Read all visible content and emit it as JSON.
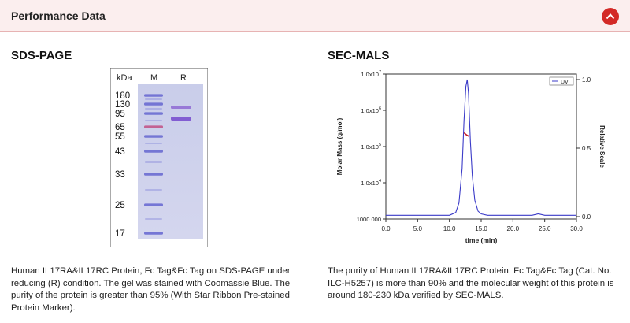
{
  "header": {
    "title": "Performance Data",
    "collapse_icon": "chevron-up-icon",
    "accent_color": "#d32a27"
  },
  "sds_page": {
    "title": "SDS-PAGE",
    "gel": {
      "col_kda": "kDa",
      "col_marker": "M",
      "col_reduced": "R",
      "marker_labels": [
        "180",
        "130",
        "95",
        "65",
        "55",
        "43",
        "33",
        "25",
        "17"
      ]
    },
    "caption": "Human IL17RA&IL17RC Protein, Fc Tag&Fc Tag on SDS-PAGE under reducing (R) condition. The gel was stained with Coomassie Blue. The purity of the protein is greater than 95% (With Star Ribbon Pre-stained Protein Marker)."
  },
  "sec_mals": {
    "title": "SEC-MALS",
    "caption": "The purity of Human IL17RA&IL17RC Protein, Fc Tag&Fc Tag (Cat. No. ILC-H5257) is more than 90% and the molecular weight of this protein is around 180-230 kDa verified by SEC-MALS."
  },
  "chart_data": {
    "type": "line",
    "title": "",
    "xlabel": "time (min)",
    "ylabel": "Molar Mass (g/mol)",
    "y2label": "Relative Scale",
    "legend": [
      "UV"
    ],
    "legend_position": "top-right",
    "xlim": [
      0,
      30
    ],
    "x_ticks": [
      "0.0",
      "5.0",
      "10.0",
      "15.0",
      "20.0",
      "25.0",
      "30.0"
    ],
    "y_scale": "log",
    "ylim": [
      1000,
      10000000
    ],
    "y_ticks": [
      "1000.000",
      "1.0x10^4",
      "1.0x10^5",
      "1.0x10^6",
      "1.0x10^7"
    ],
    "y2lim": [
      0,
      1
    ],
    "y2_ticks": [
      "0.0",
      "0.5",
      "1.0"
    ],
    "series": [
      {
        "name": "UV",
        "axis": "right",
        "color": "#3b3bc8",
        "x": [
          0,
          5,
          10,
          11,
          11.5,
          12,
          12.3,
          12.6,
          12.8,
          13,
          13.3,
          13.6,
          14,
          14.5,
          15,
          16,
          20,
          23,
          24,
          25,
          30
        ],
        "y": [
          0.01,
          0.01,
          0.01,
          0.03,
          0.1,
          0.35,
          0.7,
          0.95,
          1.0,
          0.9,
          0.55,
          0.3,
          0.12,
          0.04,
          0.02,
          0.01,
          0.01,
          0.01,
          0.02,
          0.01,
          0.01
        ]
      },
      {
        "name": "Molar Mass",
        "axis": "left",
        "color": "#c41f2a",
        "x": [
          12.3,
          12.5,
          12.7,
          12.9,
          13.1
        ],
        "y": [
          240000,
          225000,
          210000,
          200000,
          190000
        ]
      }
    ]
  }
}
